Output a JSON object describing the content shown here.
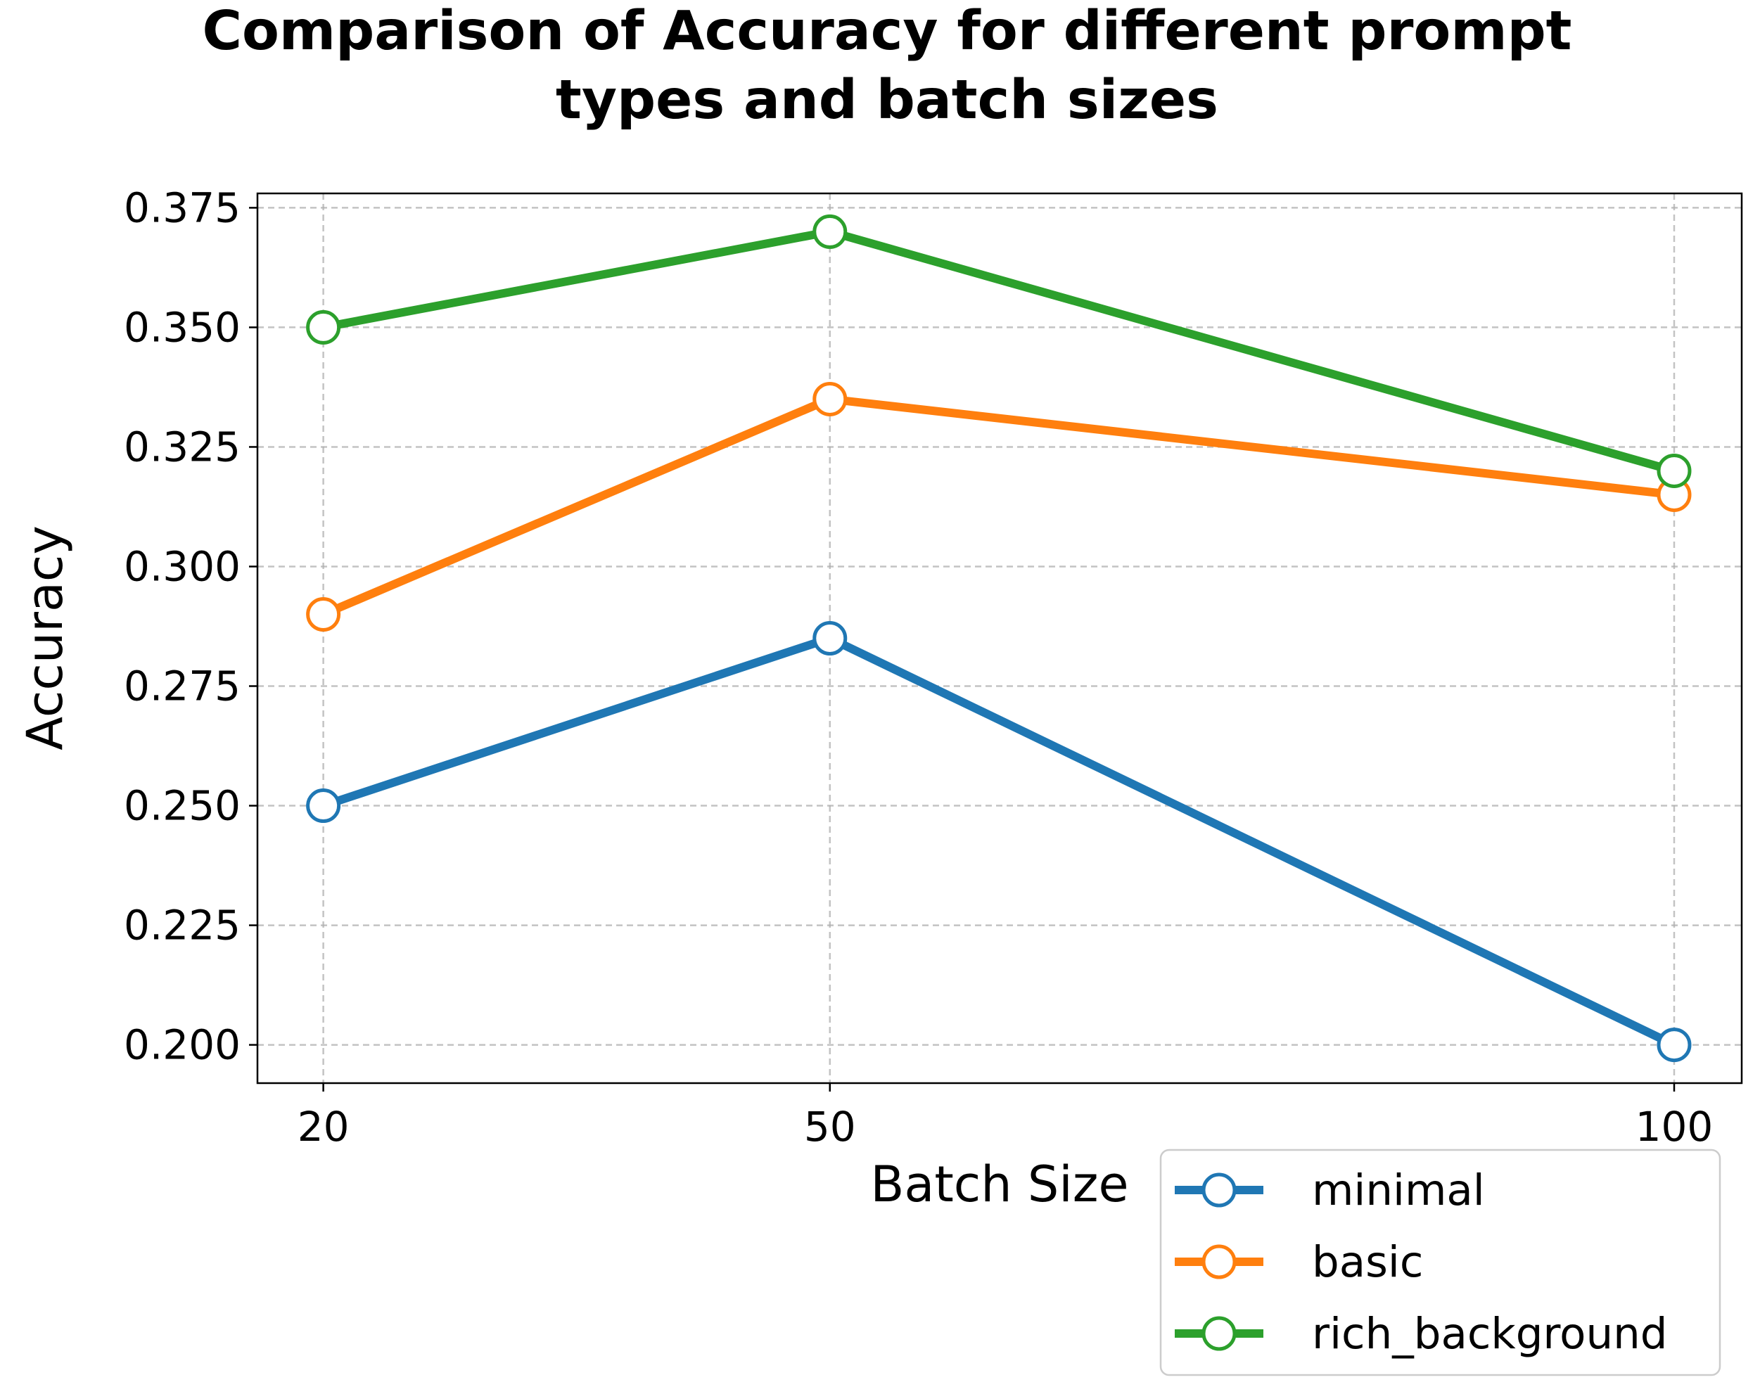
{
  "chart_data": {
    "type": "line",
    "title": "Comparison of Accuracy for different prompt types and batch sizes",
    "title_lines": [
      "Comparison of Accuracy for different prompt",
      "types and batch sizes"
    ],
    "xlabel": "Batch Size",
    "ylabel": "Accuracy",
    "x": [
      20,
      50,
      100
    ],
    "x_tick_labels": [
      "20",
      "50",
      "100"
    ],
    "y_ticks": [
      0.2,
      0.225,
      0.25,
      0.275,
      0.3,
      0.325,
      0.35,
      0.375
    ],
    "y_tick_labels": [
      "0.200",
      "0.225",
      "0.250",
      "0.275",
      "0.300",
      "0.325",
      "0.350",
      "0.375"
    ],
    "xlim": [
      16.1,
      104
    ],
    "ylim": [
      0.192,
      0.378
    ],
    "grid": true,
    "legend_position": "lower-right, outside below plot",
    "series": [
      {
        "name": "minimal",
        "color": "#1f77b4",
        "values": [
          0.25,
          0.285,
          0.2
        ]
      },
      {
        "name": "basic",
        "color": "#ff7f0e",
        "values": [
          0.29,
          0.335,
          0.315
        ]
      },
      {
        "name": "rich_background",
        "color": "#2ca02c",
        "values": [
          0.35,
          0.37,
          0.32
        ]
      }
    ],
    "marker": "hollow-circle"
  }
}
